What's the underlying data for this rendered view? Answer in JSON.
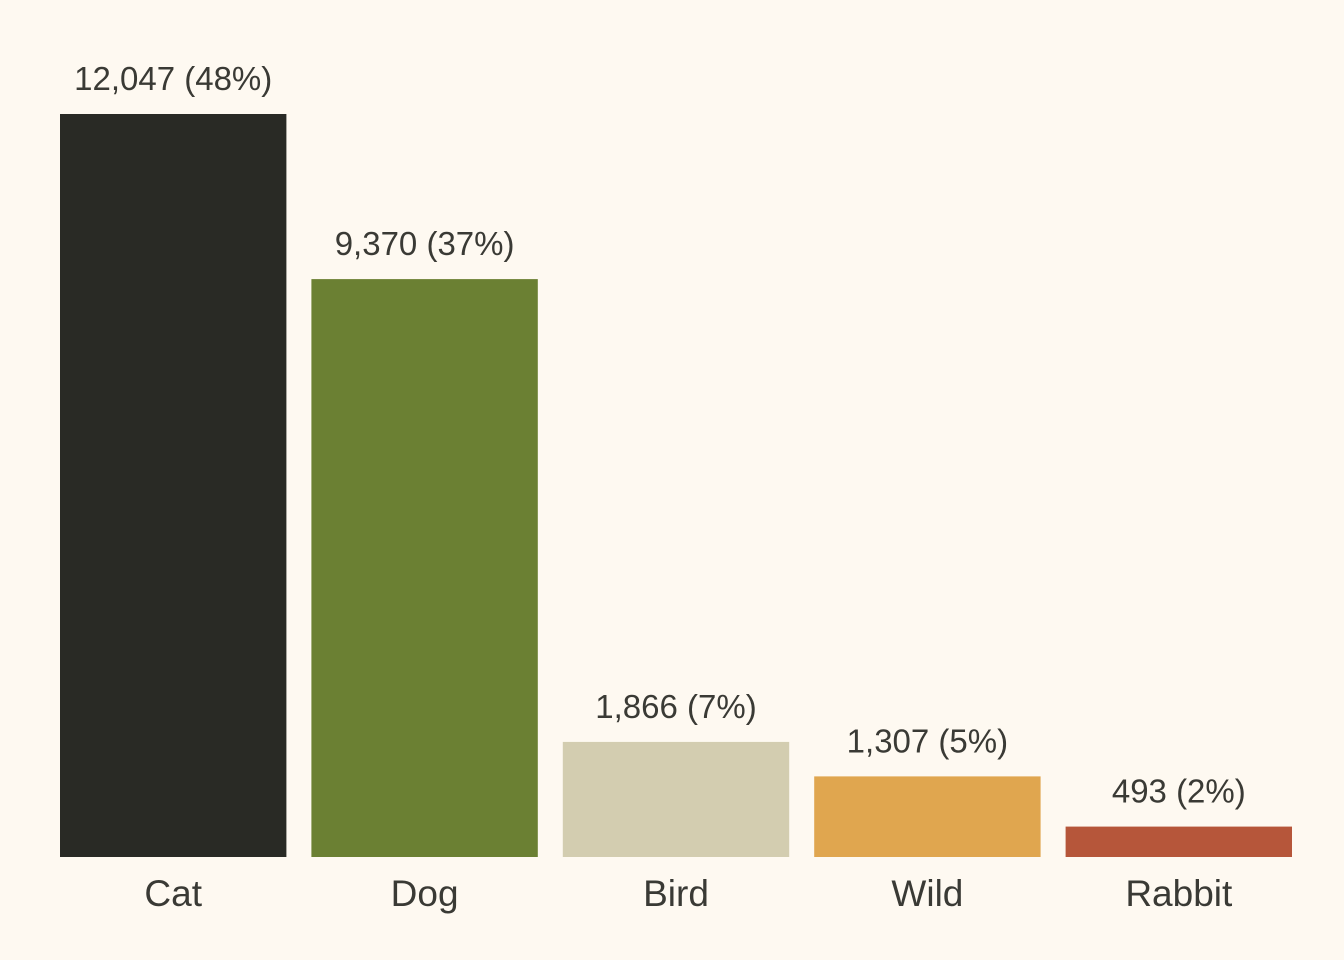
{
  "chart_data": {
    "type": "bar",
    "title": "",
    "xlabel": "",
    "ylabel": "",
    "categories": [
      "Cat",
      "Dog",
      "Bird",
      "Wild",
      "Rabbit"
    ],
    "values": [
      12047,
      9370,
      1866,
      1307,
      493
    ],
    "data_labels": [
      "12,047 (48%)",
      "9,370 (37%)",
      "1,866 (7%)",
      "1,307 (5%)",
      "493 (2%)"
    ],
    "colors": [
      "#292a25",
      "#6b8033",
      "#d3cdb0",
      "#e0a64f",
      "#b6563a"
    ],
    "ylim": [
      0,
      12047
    ],
    "grid": false,
    "legend": "none",
    "background": "#fef9f1"
  }
}
